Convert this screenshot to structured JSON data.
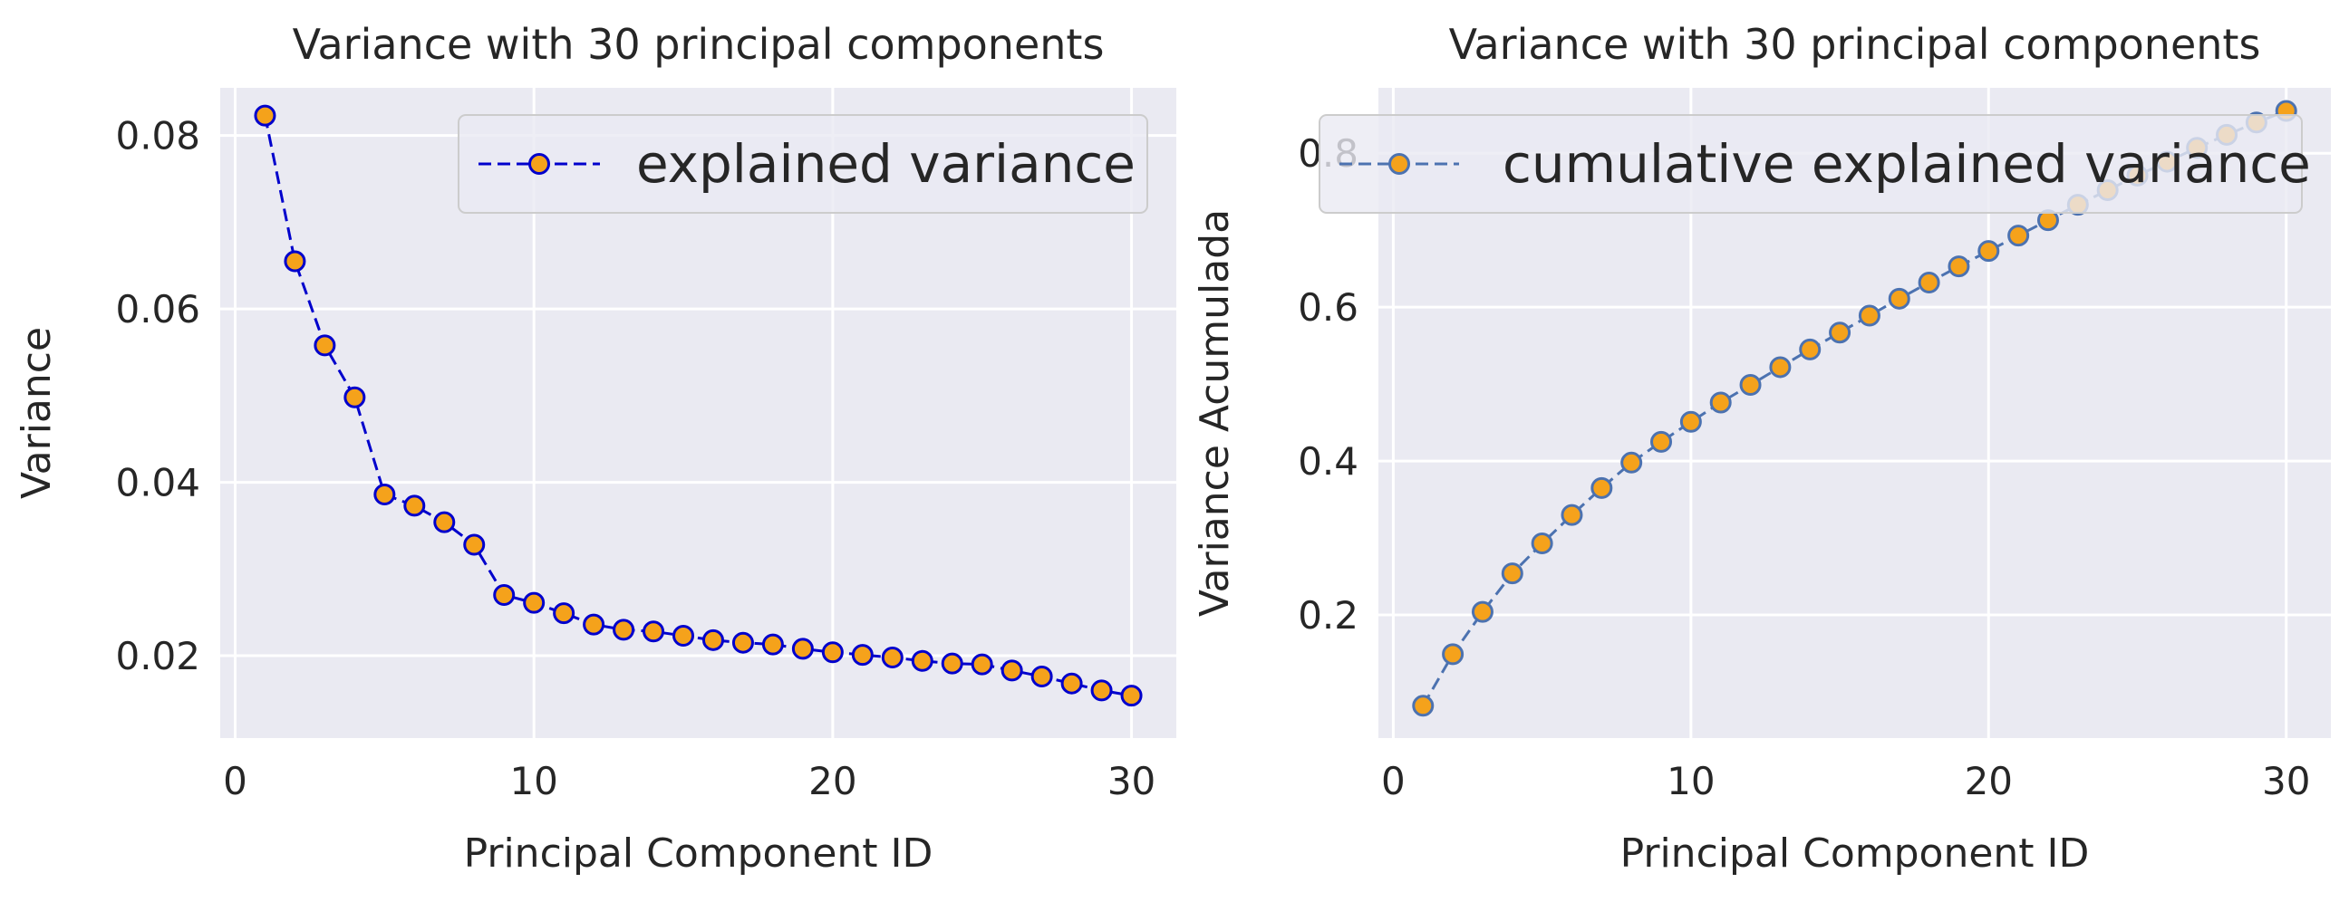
{
  "colors": {
    "panel_bg": "#eaeaf2",
    "grid": "#ffffff",
    "left_line": "#0000cc",
    "left_marker_edge": "#0000cc",
    "right_line": "#4c72b0",
    "right_marker_edge": "#4c72b0",
    "marker_fill": "#f5a21b"
  },
  "chart_data": [
    {
      "type": "line",
      "title": "Variance with 30 principal components",
      "xlabel": "Principal Component ID",
      "ylabel": "Variance",
      "xlim": [
        -0.5,
        31.5
      ],
      "ylim": [
        0.0105,
        0.0855
      ],
      "xticks": [
        0,
        10,
        20,
        30
      ],
      "xtick_labels": [
        "0",
        "10",
        "20",
        "30"
      ],
      "yticks": [
        0.02,
        0.04,
        0.06,
        0.08
      ],
      "ytick_labels": [
        "0.02",
        "0.04",
        "0.06",
        "0.08"
      ],
      "grid": true,
      "legend_position": "upper right",
      "series": [
        {
          "name": "explained variance",
          "style": "dashed line with circle markers",
          "x": [
            1,
            2,
            3,
            4,
            5,
            6,
            7,
            8,
            9,
            10,
            11,
            12,
            13,
            14,
            15,
            16,
            17,
            18,
            19,
            20,
            21,
            22,
            23,
            24,
            25,
            26,
            27,
            28,
            29,
            30
          ],
          "values": [
            0.0823,
            0.0655,
            0.0558,
            0.0498,
            0.0386,
            0.0373,
            0.0354,
            0.0328,
            0.027,
            0.0261,
            0.0249,
            0.0236,
            0.023,
            0.0228,
            0.0223,
            0.0218,
            0.0215,
            0.0213,
            0.0208,
            0.0204,
            0.0201,
            0.0198,
            0.0194,
            0.0191,
            0.019,
            0.0183,
            0.0176,
            0.0168,
            0.016,
            0.0154
          ]
        }
      ]
    },
    {
      "type": "line",
      "title": "Variance with 30 principal components",
      "xlabel": "Principal Component ID",
      "ylabel": "Variance Acumulada",
      "xlim": [
        -0.5,
        31.5
      ],
      "ylim": [
        0.04,
        0.885
      ],
      "xticks": [
        0,
        10,
        20,
        30
      ],
      "xtick_labels": [
        "0",
        "10",
        "20",
        "30"
      ],
      "yticks": [
        0.2,
        0.4,
        0.6,
        0.8
      ],
      "ytick_labels": [
        "0.2",
        "0.4",
        "0.6",
        "0.8"
      ],
      "grid": true,
      "legend_position": "upper center",
      "series": [
        {
          "name": "cumulative explained variance",
          "style": "dashed line with circle markers",
          "x": [
            1,
            2,
            3,
            4,
            5,
            6,
            7,
            8,
            9,
            10,
            11,
            12,
            13,
            14,
            15,
            16,
            17,
            18,
            19,
            20,
            21,
            22,
            23,
            24,
            25,
            26,
            27,
            28,
            29,
            30
          ],
          "values": [
            0.082,
            0.149,
            0.204,
            0.254,
            0.293,
            0.33,
            0.365,
            0.398,
            0.425,
            0.451,
            0.476,
            0.499,
            0.522,
            0.545,
            0.567,
            0.589,
            0.611,
            0.632,
            0.653,
            0.673,
            0.693,
            0.713,
            0.733,
            0.752,
            0.771,
            0.789,
            0.807,
            0.824,
            0.84,
            0.855
          ]
        }
      ]
    }
  ]
}
